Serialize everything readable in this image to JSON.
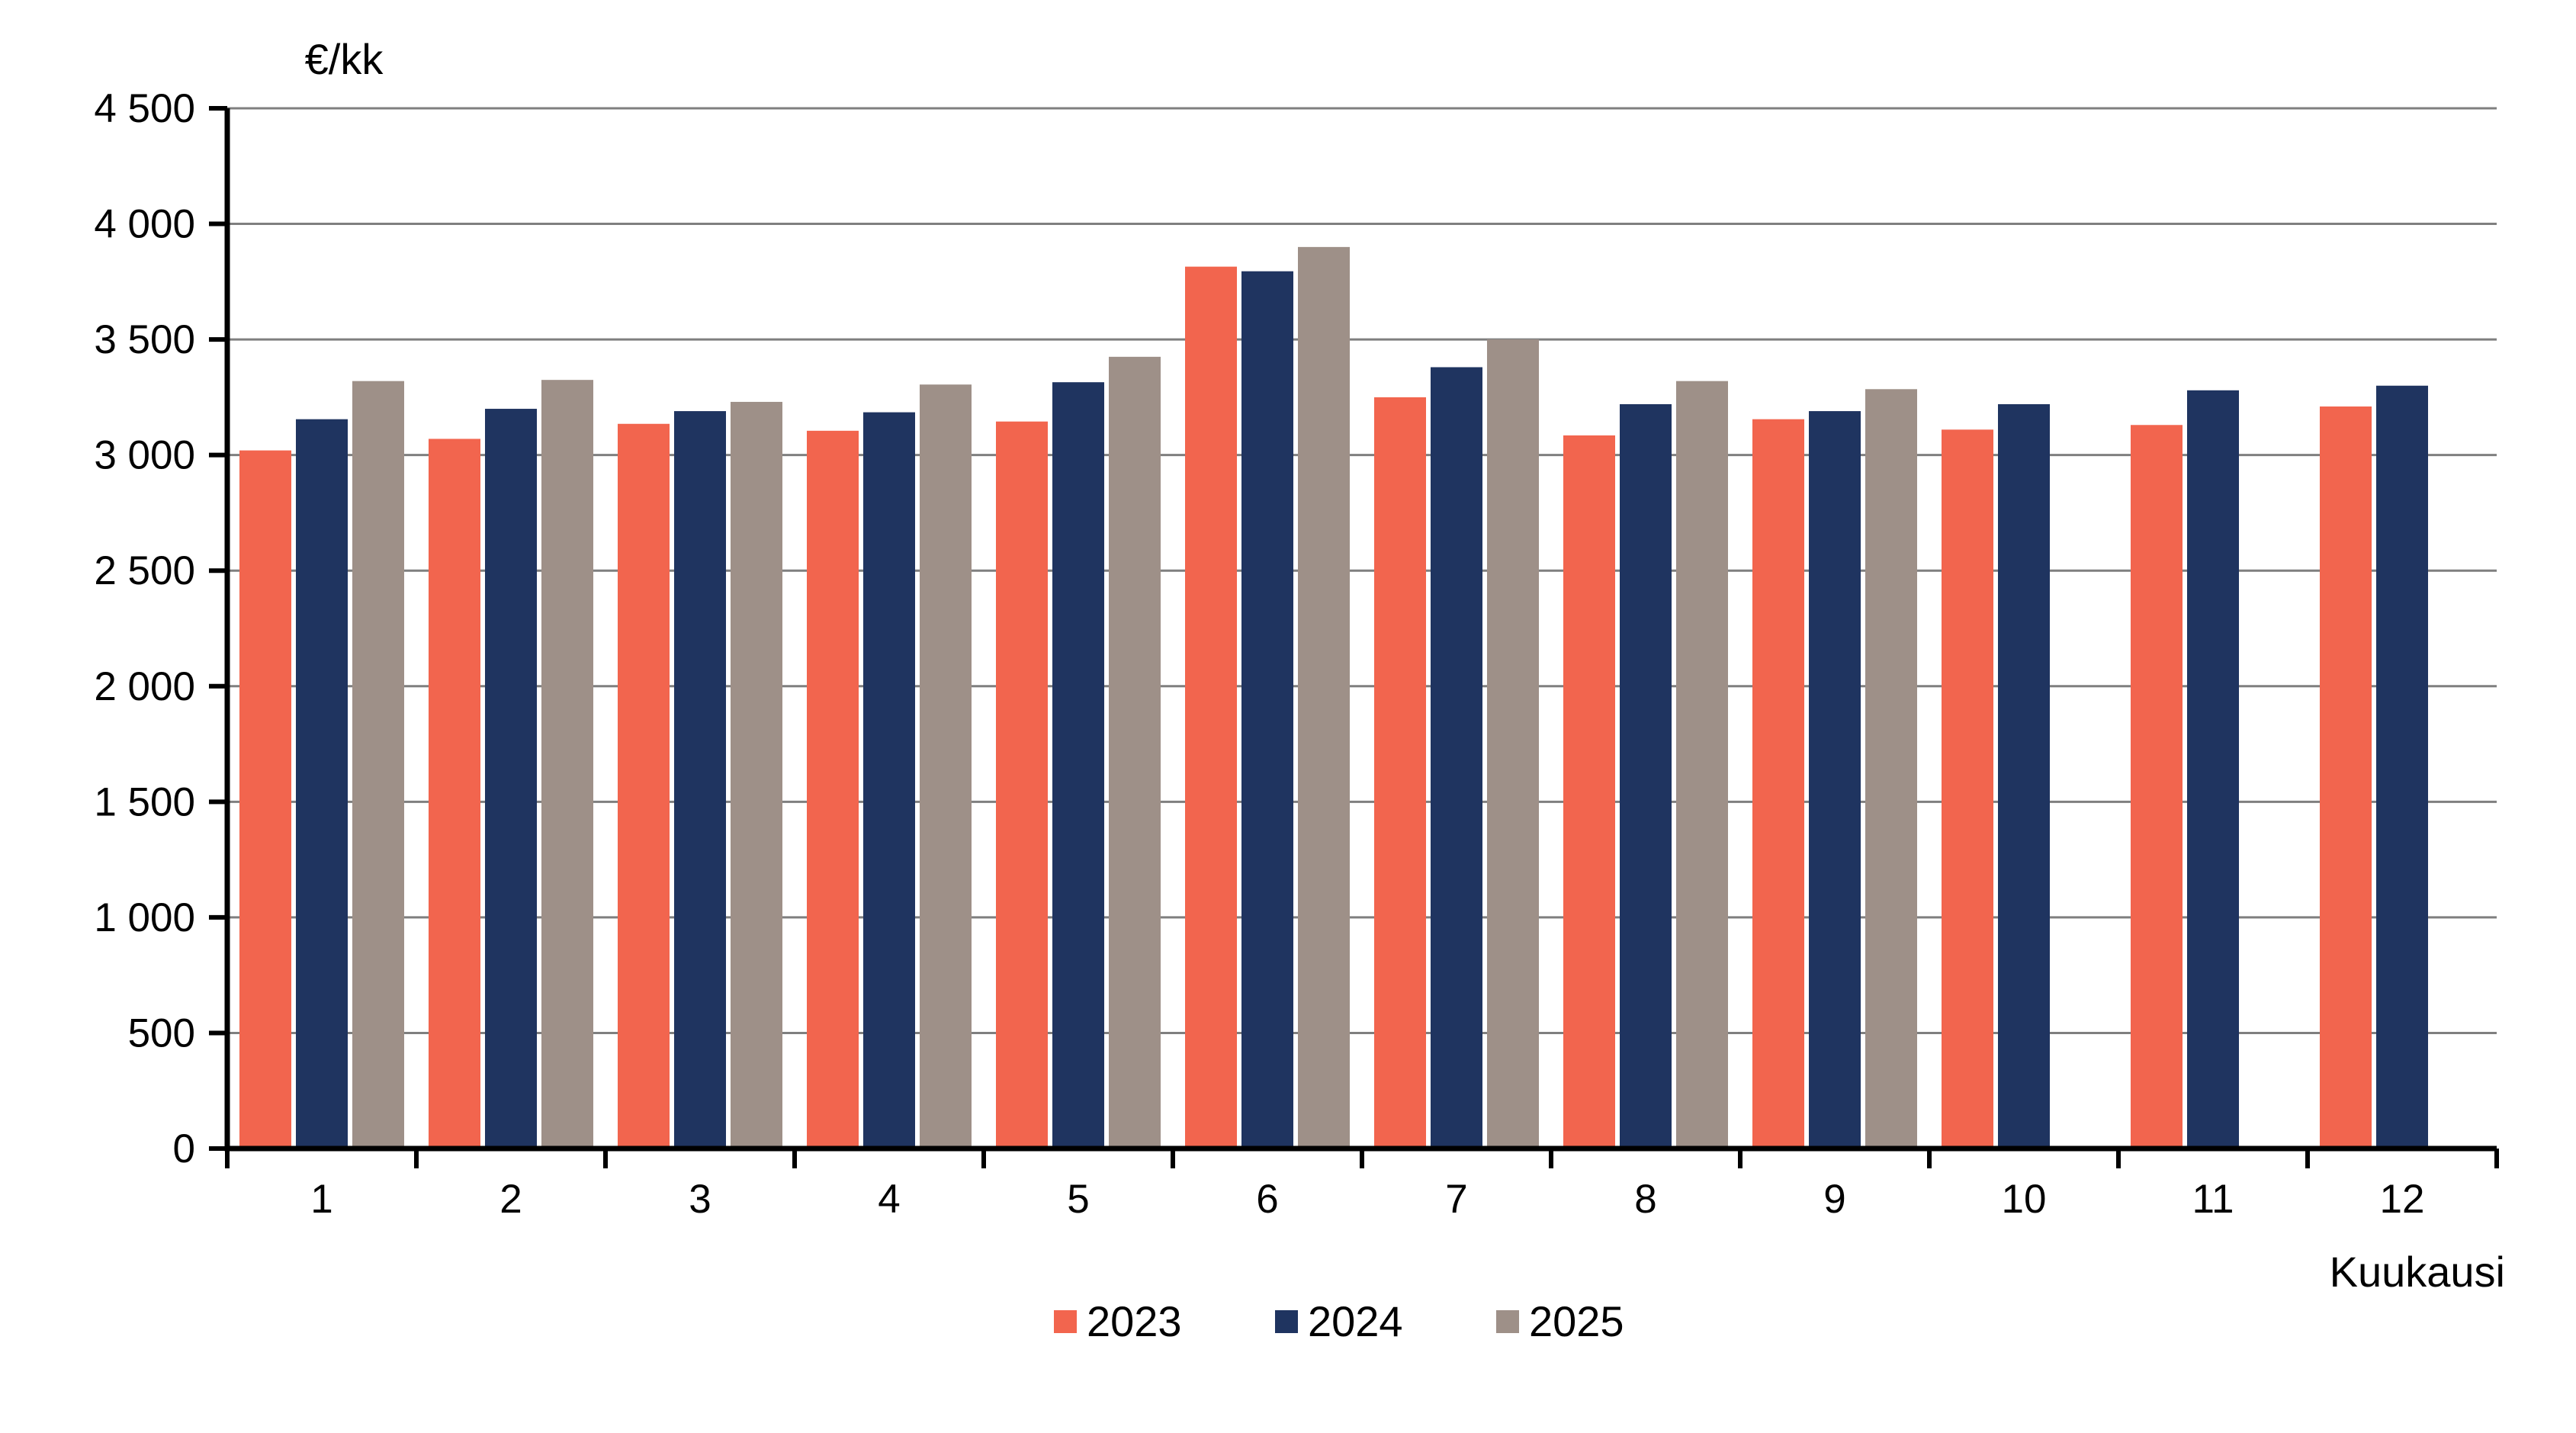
{
  "chart_data": {
    "type": "bar",
    "title": "",
    "ylabel": "€/kk",
    "xlabel": "Kuukausi",
    "categories": [
      "1",
      "2",
      "3",
      "4",
      "5",
      "6",
      "7",
      "8",
      "9",
      "10",
      "11",
      "12"
    ],
    "series": [
      {
        "name": "2023",
        "color": "#F2654E",
        "values": [
          3020,
          3070,
          3135,
          3105,
          3145,
          3815,
          3250,
          3085,
          3155,
          3110,
          3130,
          3210
        ]
      },
      {
        "name": "2024",
        "color": "#1F3460",
        "values": [
          3155,
          3200,
          3190,
          3185,
          3315,
          3795,
          3380,
          3220,
          3190,
          3220,
          3280,
          3300
        ]
      },
      {
        "name": "2025",
        "color": "#9E9088",
        "values": [
          3320,
          3325,
          3230,
          3305,
          3425,
          3900,
          3500,
          3320,
          3285,
          null,
          null,
          null
        ]
      }
    ],
    "ylim": [
      0,
      4500
    ],
    "ytick_step": 500,
    "ytick_labels": [
      "0",
      "500",
      "1 000",
      "1 500",
      "2 000",
      "2 500",
      "3 000",
      "3 500",
      "4 000",
      "4 500"
    ],
    "grid": true,
    "legend_position": "bottom",
    "axis_color": "#000000",
    "gridline_color": "#7F7F7F",
    "background_color": "#FFFFFF"
  }
}
